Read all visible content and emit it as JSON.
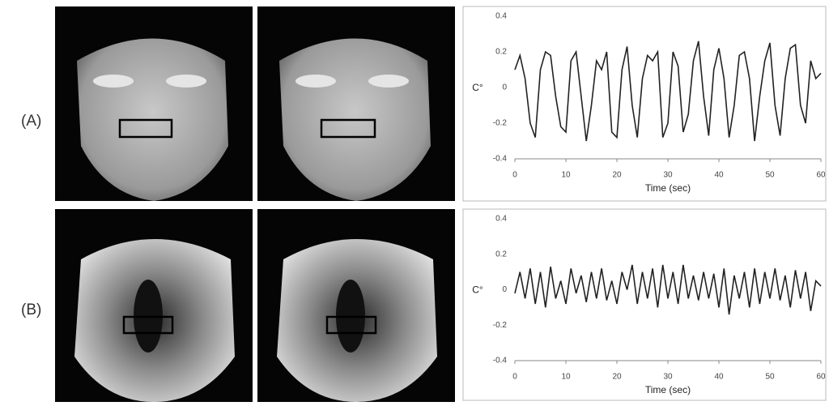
{
  "panel_labels": [
    "(A)",
    "(B)"
  ],
  "chart_data": [
    {
      "type": "line",
      "xlabel": "Time (sec)",
      "ylabel": "C°",
      "xlim": [
        0,
        60
      ],
      "ylim": [
        -0.4,
        0.4
      ],
      "xticks": [
        0,
        10,
        20,
        30,
        40,
        50,
        60
      ],
      "yticks": [
        -0.4,
        -0.2,
        0,
        0.2,
        0.4
      ],
      "x": [
        0,
        1,
        2,
        3,
        4,
        5,
        6,
        7,
        8,
        9,
        10,
        11,
        12,
        13,
        14,
        15,
        16,
        17,
        18,
        19,
        20,
        21,
        22,
        23,
        24,
        25,
        26,
        27,
        28,
        29,
        30,
        31,
        32,
        33,
        34,
        35,
        36,
        37,
        38,
        39,
        40,
        41,
        42,
        43,
        44,
        45,
        46,
        47,
        48,
        49,
        50,
        51,
        52,
        53,
        54,
        55,
        56,
        57,
        58,
        59,
        60
      ],
      "series": [
        {
          "color": "#222222",
          "values": [
            0.1,
            0.18,
            0.05,
            -0.2,
            -0.28,
            0.1,
            0.2,
            0.18,
            -0.05,
            -0.22,
            -0.25,
            0.15,
            0.2,
            -0.05,
            -0.3,
            -0.1,
            0.15,
            0.1,
            0.2,
            -0.25,
            -0.28,
            0.1,
            0.23,
            -0.1,
            -0.28,
            0.05,
            0.18,
            0.15,
            0.2,
            -0.28,
            -0.2,
            0.2,
            0.12,
            -0.25,
            -0.15,
            0.15,
            0.26,
            -0.05,
            -0.27,
            0.1,
            0.22,
            0.05,
            -0.28,
            -0.1,
            0.18,
            0.2,
            0.05,
            -0.3,
            -0.05,
            0.15,
            0.25,
            -0.1,
            -0.27,
            0.05,
            0.22,
            0.24,
            -0.1,
            -0.2,
            0.15,
            0.05,
            0.08
          ]
        }
      ]
    },
    {
      "type": "line",
      "xlabel": "Time (sec)",
      "ylabel": "C°",
      "xlim": [
        0,
        60
      ],
      "ylim": [
        -0.4,
        0.4
      ],
      "xticks": [
        0,
        10,
        20,
        30,
        40,
        50,
        60
      ],
      "yticks": [
        -0.4,
        -0.2,
        0,
        0.2,
        0.4
      ],
      "x": [
        0,
        1,
        2,
        3,
        4,
        5,
        6,
        7,
        8,
        9,
        10,
        11,
        12,
        13,
        14,
        15,
        16,
        17,
        18,
        19,
        20,
        21,
        22,
        23,
        24,
        25,
        26,
        27,
        28,
        29,
        30,
        31,
        32,
        33,
        34,
        35,
        36,
        37,
        38,
        39,
        40,
        41,
        42,
        43,
        44,
        45,
        46,
        47,
        48,
        49,
        50,
        51,
        52,
        53,
        54,
        55,
        56,
        57,
        58,
        59,
        60
      ],
      "series": [
        {
          "color": "#222222",
          "values": [
            -0.02,
            0.1,
            -0.05,
            0.12,
            -0.08,
            0.1,
            -0.1,
            0.13,
            -0.05,
            0.05,
            -0.08,
            0.12,
            -0.02,
            0.08,
            -0.07,
            0.1,
            -0.05,
            0.12,
            -0.06,
            0.05,
            -0.08,
            0.1,
            0.0,
            0.14,
            -0.08,
            0.1,
            -0.05,
            0.12,
            -0.1,
            0.14,
            -0.05,
            0.1,
            -0.08,
            0.14,
            -0.05,
            0.08,
            -0.06,
            0.1,
            -0.05,
            0.09,
            -0.1,
            0.12,
            -0.14,
            0.08,
            -0.05,
            0.1,
            -0.1,
            0.12,
            -0.08,
            0.1,
            -0.05,
            0.12,
            -0.06,
            0.08,
            -0.1,
            0.11,
            -0.05,
            0.1,
            -0.12,
            0.05,
            0.02
          ]
        }
      ]
    }
  ]
}
